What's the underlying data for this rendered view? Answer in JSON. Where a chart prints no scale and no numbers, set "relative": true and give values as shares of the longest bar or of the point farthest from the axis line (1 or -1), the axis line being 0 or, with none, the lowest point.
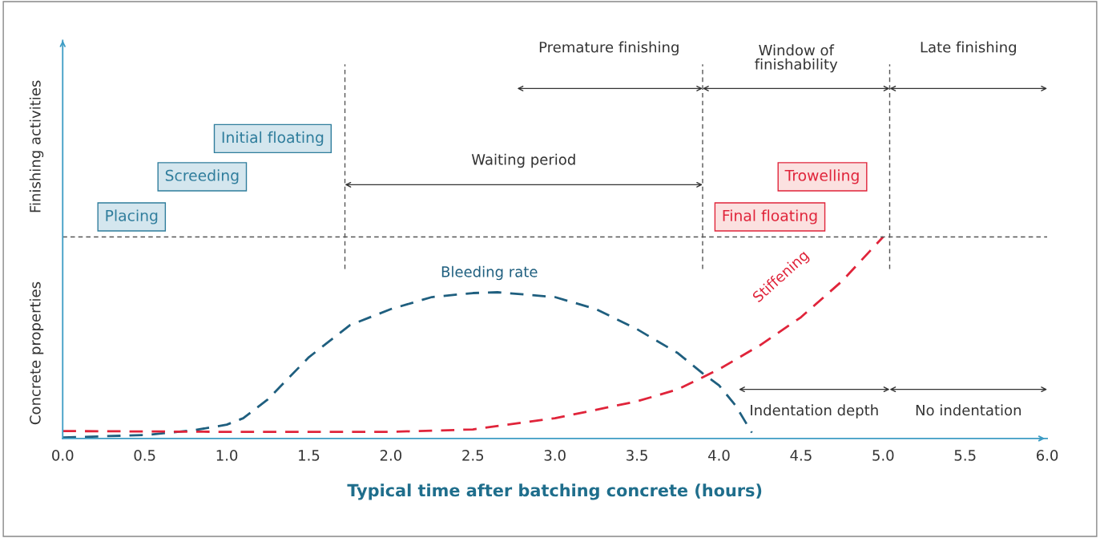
{
  "chart_data": {
    "type": "line",
    "relative": true,
    "xlabel": "Typical time after batching concrete (hours)",
    "xlim": [
      0,
      6
    ],
    "xticks": [
      {
        "value": 0,
        "label": "0.0"
      },
      {
        "value": 0.5,
        "label": "0.5"
      },
      {
        "value": 1,
        "label": "1.0"
      },
      {
        "value": 1.5,
        "label": "1.5"
      },
      {
        "value": 2,
        "label": "2.0"
      },
      {
        "value": 2.5,
        "label": "2.5"
      },
      {
        "value": 3,
        "label": "3.0"
      },
      {
        "value": 3.5,
        "label": "3.5"
      },
      {
        "value": 4,
        "label": "4.0"
      },
      {
        "value": 4.5,
        "label": "4.5"
      },
      {
        "value": 5,
        "label": "5.0"
      },
      {
        "value": 5.5,
        "label": "5.5"
      },
      {
        "value": 6,
        "label": "6.0"
      }
    ],
    "tick_labels": "x",
    "grid": false,
    "legend": false,
    "marker": "none",
    "line_style": "dashed",
    "series": [
      {
        "name": "Bleeding rate",
        "color": "#1f5f7f",
        "x": [
          0,
          0.5,
          0.8,
          1.0,
          1.1,
          1.25,
          1.5,
          1.75,
          2.0,
          2.25,
          2.5,
          2.65,
          3.0,
          3.25,
          3.5,
          3.75,
          3.9,
          4.0,
          4.1,
          4.2
        ],
        "values": [
          0,
          0.012,
          0.036,
          0.064,
          0.096,
          0.19,
          0.4,
          0.56,
          0.64,
          0.7,
          0.72,
          0.724,
          0.7,
          0.64,
          0.54,
          0.42,
          0.32,
          0.26,
          0.16,
          0.024
        ]
      },
      {
        "name": "Stiffening",
        "color": "#e0243a",
        "x": [
          0,
          1.0,
          2.0,
          2.5,
          3.0,
          3.5,
          3.75,
          4.0,
          4.25,
          4.5,
          4.75,
          5.0
        ],
        "values": [
          0.032,
          0.028,
          0.028,
          0.04,
          0.096,
          0.18,
          0.24,
          0.34,
          0.46,
          0.6,
          0.78,
          1.0
        ]
      }
    ],
    "ref_lines": [
      {
        "axis": "x",
        "value": 1.72
      },
      {
        "axis": "x",
        "value": 3.9
      },
      {
        "axis": "x",
        "value": 5.04
      },
      {
        "axis": "y",
        "value": 1.0
      }
    ],
    "annotations": [
      "Finishing activities",
      "Concrete properties",
      "Placing",
      "Screeding",
      "Initial floating",
      "Final floating",
      "Trowelling",
      "Premature finishing",
      "Window of\nfinishability",
      "Late finishing",
      "Waiting period",
      "Indentation depth",
      "No indentation"
    ]
  }
}
